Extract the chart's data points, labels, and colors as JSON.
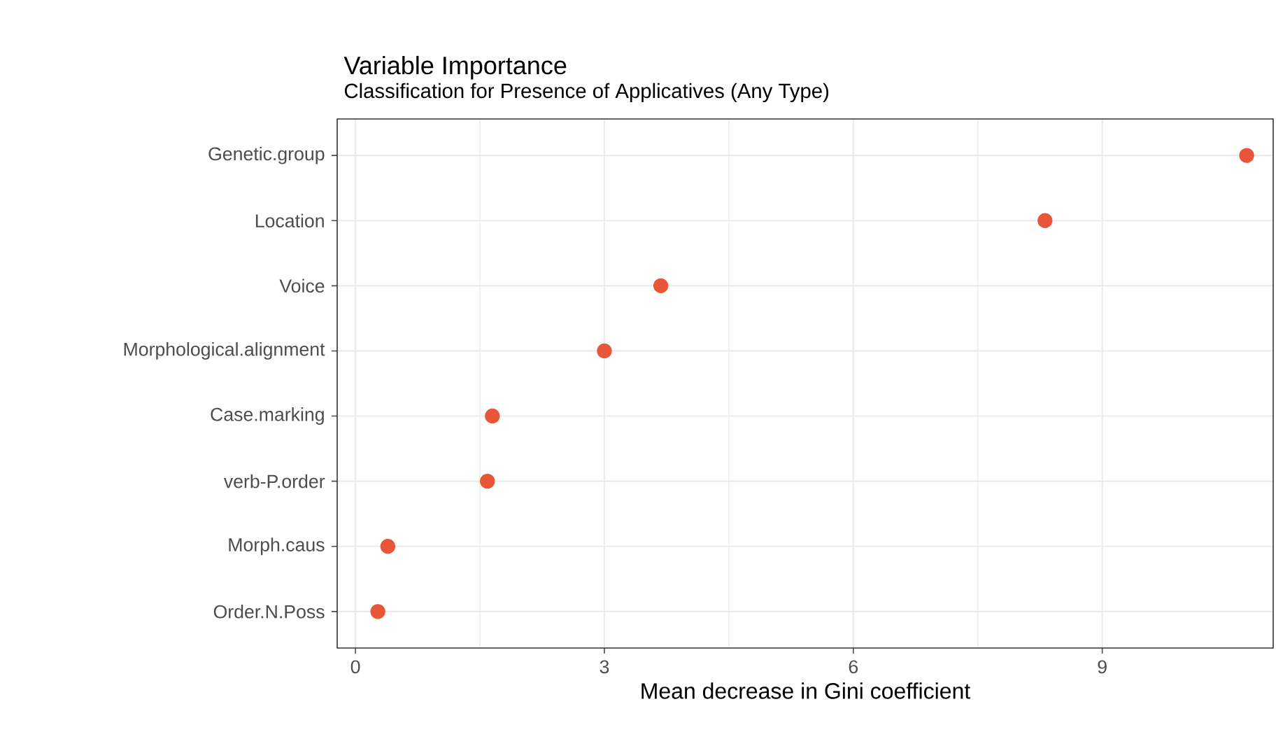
{
  "chart_data": {
    "type": "scatter",
    "title": "Variable Importance",
    "subtitle": "Classification for Presence of Applicatives (Any Type)",
    "xlabel": "Mean decrease in Gini coefficient",
    "categories": [
      "Genetic.group",
      "Location",
      "Voice",
      "Morphological.alignment",
      "Case.marking",
      "verb-P.order",
      "Morph.caus",
      "Order.N.Poss"
    ],
    "orientation": "horizontal",
    "values": [
      10.74,
      8.31,
      3.68,
      3.0,
      1.65,
      1.59,
      0.39,
      0.27
    ],
    "color": "#e8563a",
    "xlim": [
      -0.22,
      11.06
    ],
    "xticks": [
      0,
      3,
      6,
      9
    ],
    "grid": true
  }
}
